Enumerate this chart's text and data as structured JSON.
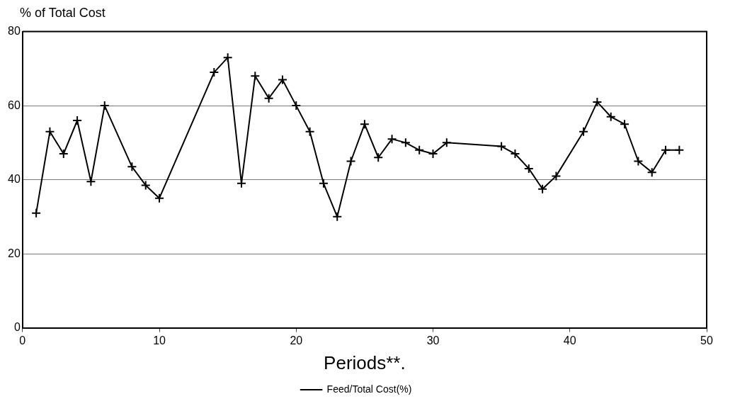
{
  "chart_data": {
    "type": "line",
    "ylabel": "% of Total Cost",
    "xlabel": "Periods**.",
    "x": [
      1,
      2,
      3,
      4,
      5,
      6,
      8,
      9,
      10,
      14,
      15,
      16,
      17,
      18,
      19,
      20,
      21,
      22,
      23,
      24,
      25,
      26,
      27,
      28,
      29,
      30,
      31,
      35,
      36,
      37,
      38,
      39,
      41,
      42,
      43,
      44,
      45,
      46,
      47,
      48
    ],
    "series": [
      {
        "name": "Feed/Total Cost(%)",
        "color": "#000000",
        "values": [
          31,
          53,
          47,
          56,
          39.5,
          60,
          43.5,
          38.5,
          35,
          69,
          73,
          39,
          68,
          62,
          67,
          60,
          53,
          39,
          30,
          45,
          55,
          46,
          51,
          50,
          48,
          47,
          50,
          49,
          47,
          43,
          37.5,
          41,
          53,
          61,
          57,
          55,
          45,
          42,
          48,
          48
        ]
      }
    ],
    "xlim": [
      0,
      50
    ],
    "xticks": [
      0,
      10,
      20,
      30,
      40,
      50
    ],
    "ylim": [
      0,
      80
    ],
    "yticks": [
      0,
      20,
      40,
      60,
      80
    ],
    "grid": "y",
    "legend": "bottom",
    "marker": "cross",
    "line_style": "solid"
  }
}
